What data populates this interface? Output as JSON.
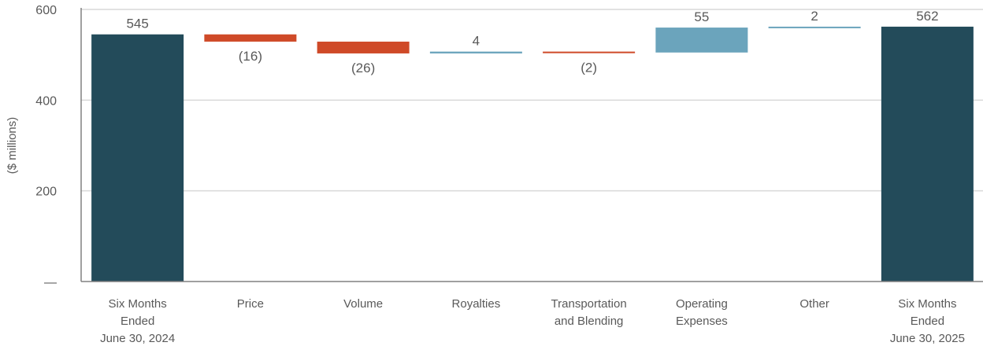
{
  "chart_data": {
    "type": "bar",
    "subtype": "waterfall",
    "ylabel": "($ millions)",
    "ylim": [
      0,
      600
    ],
    "yticks": [
      {
        "value": 0,
        "label": "—"
      },
      {
        "value": 200,
        "label": "200"
      },
      {
        "value": 400,
        "label": "400"
      },
      {
        "value": 600,
        "label": "600"
      }
    ],
    "grid": true,
    "categories": [
      [
        "Six Months",
        "Ended",
        "June 30, 2024"
      ],
      [
        "Price"
      ],
      [
        "Volume"
      ],
      [
        "Royalties"
      ],
      [
        "Transportation",
        "and Blending"
      ],
      [
        "Operating",
        "Expenses"
      ],
      [
        "Other"
      ],
      [
        "Six Months",
        "Ended",
        "June 30, 2025"
      ]
    ],
    "values": [
      545,
      -16,
      -26,
      4,
      -2,
      55,
      2,
      562
    ],
    "kinds": [
      "total",
      "change",
      "change",
      "change",
      "change",
      "change",
      "change",
      "total"
    ],
    "labels": [
      "545",
      "(16)",
      "(26)",
      "4",
      "(2)",
      "55",
      "2",
      "562"
    ],
    "colors": {
      "total": "#234b5a",
      "increase": "#6ba4bc",
      "decrease": "#cf4a28",
      "grid": "#d9d9d9",
      "axis": "#808080"
    }
  }
}
